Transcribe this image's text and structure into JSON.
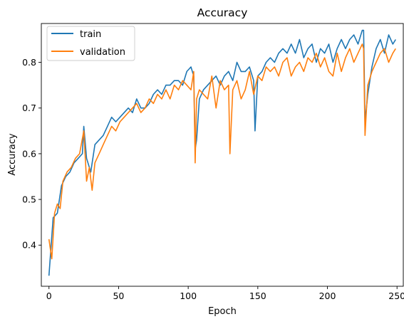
{
  "chart_data": {
    "type": "line",
    "title": "Accuracy",
    "xlabel": "Epoch",
    "ylabel": "Accuracy",
    "xlim": [
      -5.5,
      254.5
    ],
    "ylim": [
      0.31,
      0.885
    ],
    "xticks": [
      0,
      50,
      100,
      150,
      200,
      250
    ],
    "xtick_labels": [
      "0",
      "50",
      "100",
      "150",
      "200",
      "250"
    ],
    "yticks": [
      0.4,
      0.5,
      0.6,
      0.7,
      0.8
    ],
    "ytick_labels": [
      "0.4",
      "0.5",
      "0.6",
      "0.7",
      "0.8"
    ],
    "legend_position": "top-left",
    "series": [
      {
        "name": "train",
        "color": "#1f77b4",
        "x": [
          0,
          3,
          6,
          9,
          12,
          15,
          18,
          21,
          24,
          25,
          27,
          30,
          33,
          36,
          39,
          42,
          45,
          48,
          51,
          54,
          57,
          60,
          63,
          66,
          69,
          72,
          75,
          78,
          81,
          84,
          87,
          90,
          93,
          96,
          99,
          102,
          104,
          105,
          106,
          108,
          111,
          114,
          117,
          120,
          123,
          126,
          129,
          132,
          135,
          138,
          141,
          144,
          147,
          148,
          150,
          153,
          156,
          159,
          162,
          165,
          168,
          171,
          174,
          177,
          180,
          183,
          186,
          189,
          192,
          195,
          198,
          201,
          204,
          207,
          210,
          213,
          216,
          219,
          222,
          225,
          226,
          227,
          229,
          232,
          235,
          238,
          241,
          244,
          247,
          249
        ],
        "values": [
          0.333,
          0.46,
          0.47,
          0.53,
          0.55,
          0.56,
          0.58,
          0.59,
          0.6,
          0.66,
          0.59,
          0.56,
          0.62,
          0.63,
          0.64,
          0.66,
          0.68,
          0.67,
          0.68,
          0.69,
          0.7,
          0.69,
          0.72,
          0.7,
          0.7,
          0.71,
          0.73,
          0.74,
          0.73,
          0.75,
          0.75,
          0.76,
          0.76,
          0.75,
          0.78,
          0.79,
          0.77,
          0.61,
          0.63,
          0.72,
          0.74,
          0.75,
          0.76,
          0.77,
          0.75,
          0.77,
          0.78,
          0.76,
          0.8,
          0.78,
          0.78,
          0.79,
          0.76,
          0.65,
          0.77,
          0.78,
          0.8,
          0.81,
          0.8,
          0.82,
          0.83,
          0.82,
          0.84,
          0.82,
          0.85,
          0.81,
          0.83,
          0.84,
          0.8,
          0.83,
          0.82,
          0.84,
          0.8,
          0.83,
          0.85,
          0.83,
          0.85,
          0.86,
          0.84,
          0.87,
          0.87,
          0.67,
          0.73,
          0.79,
          0.83,
          0.85,
          0.82,
          0.86,
          0.84,
          0.85
        ]
      },
      {
        "name": "validation",
        "color": "#ff7f0e",
        "x": [
          0,
          2,
          4,
          6,
          8,
          10,
          13,
          16,
          19,
          22,
          25,
          27,
          29,
          31,
          33,
          36,
          39,
          42,
          45,
          48,
          51,
          54,
          57,
          60,
          63,
          66,
          69,
          72,
          75,
          78,
          81,
          84,
          87,
          90,
          93,
          96,
          99,
          102,
          104,
          105,
          106,
          108,
          111,
          114,
          117,
          120,
          123,
          126,
          129,
          130,
          132,
          135,
          138,
          141,
          144,
          147,
          150,
          153,
          156,
          159,
          162,
          165,
          168,
          171,
          174,
          177,
          180,
          183,
          186,
          189,
          192,
          195,
          198,
          201,
          204,
          207,
          210,
          213,
          216,
          219,
          222,
          225,
          226,
          227,
          229,
          232,
          235,
          238,
          241,
          244,
          247,
          249
        ],
        "values": [
          0.413,
          0.37,
          0.47,
          0.49,
          0.48,
          0.54,
          0.56,
          0.57,
          0.59,
          0.6,
          0.65,
          0.54,
          0.57,
          0.52,
          0.58,
          0.6,
          0.62,
          0.64,
          0.66,
          0.65,
          0.67,
          0.68,
          0.69,
          0.7,
          0.71,
          0.69,
          0.7,
          0.72,
          0.71,
          0.73,
          0.72,
          0.74,
          0.72,
          0.75,
          0.74,
          0.76,
          0.75,
          0.74,
          0.78,
          0.58,
          0.72,
          0.74,
          0.73,
          0.72,
          0.77,
          0.7,
          0.76,
          0.74,
          0.75,
          0.6,
          0.74,
          0.76,
          0.72,
          0.74,
          0.78,
          0.73,
          0.77,
          0.76,
          0.79,
          0.78,
          0.79,
          0.77,
          0.8,
          0.81,
          0.77,
          0.79,
          0.8,
          0.78,
          0.81,
          0.8,
          0.82,
          0.79,
          0.81,
          0.78,
          0.77,
          0.82,
          0.78,
          0.81,
          0.83,
          0.8,
          0.82,
          0.84,
          0.83,
          0.64,
          0.75,
          0.78,
          0.8,
          0.82,
          0.83,
          0.8,
          0.82,
          0.83
        ]
      }
    ]
  }
}
